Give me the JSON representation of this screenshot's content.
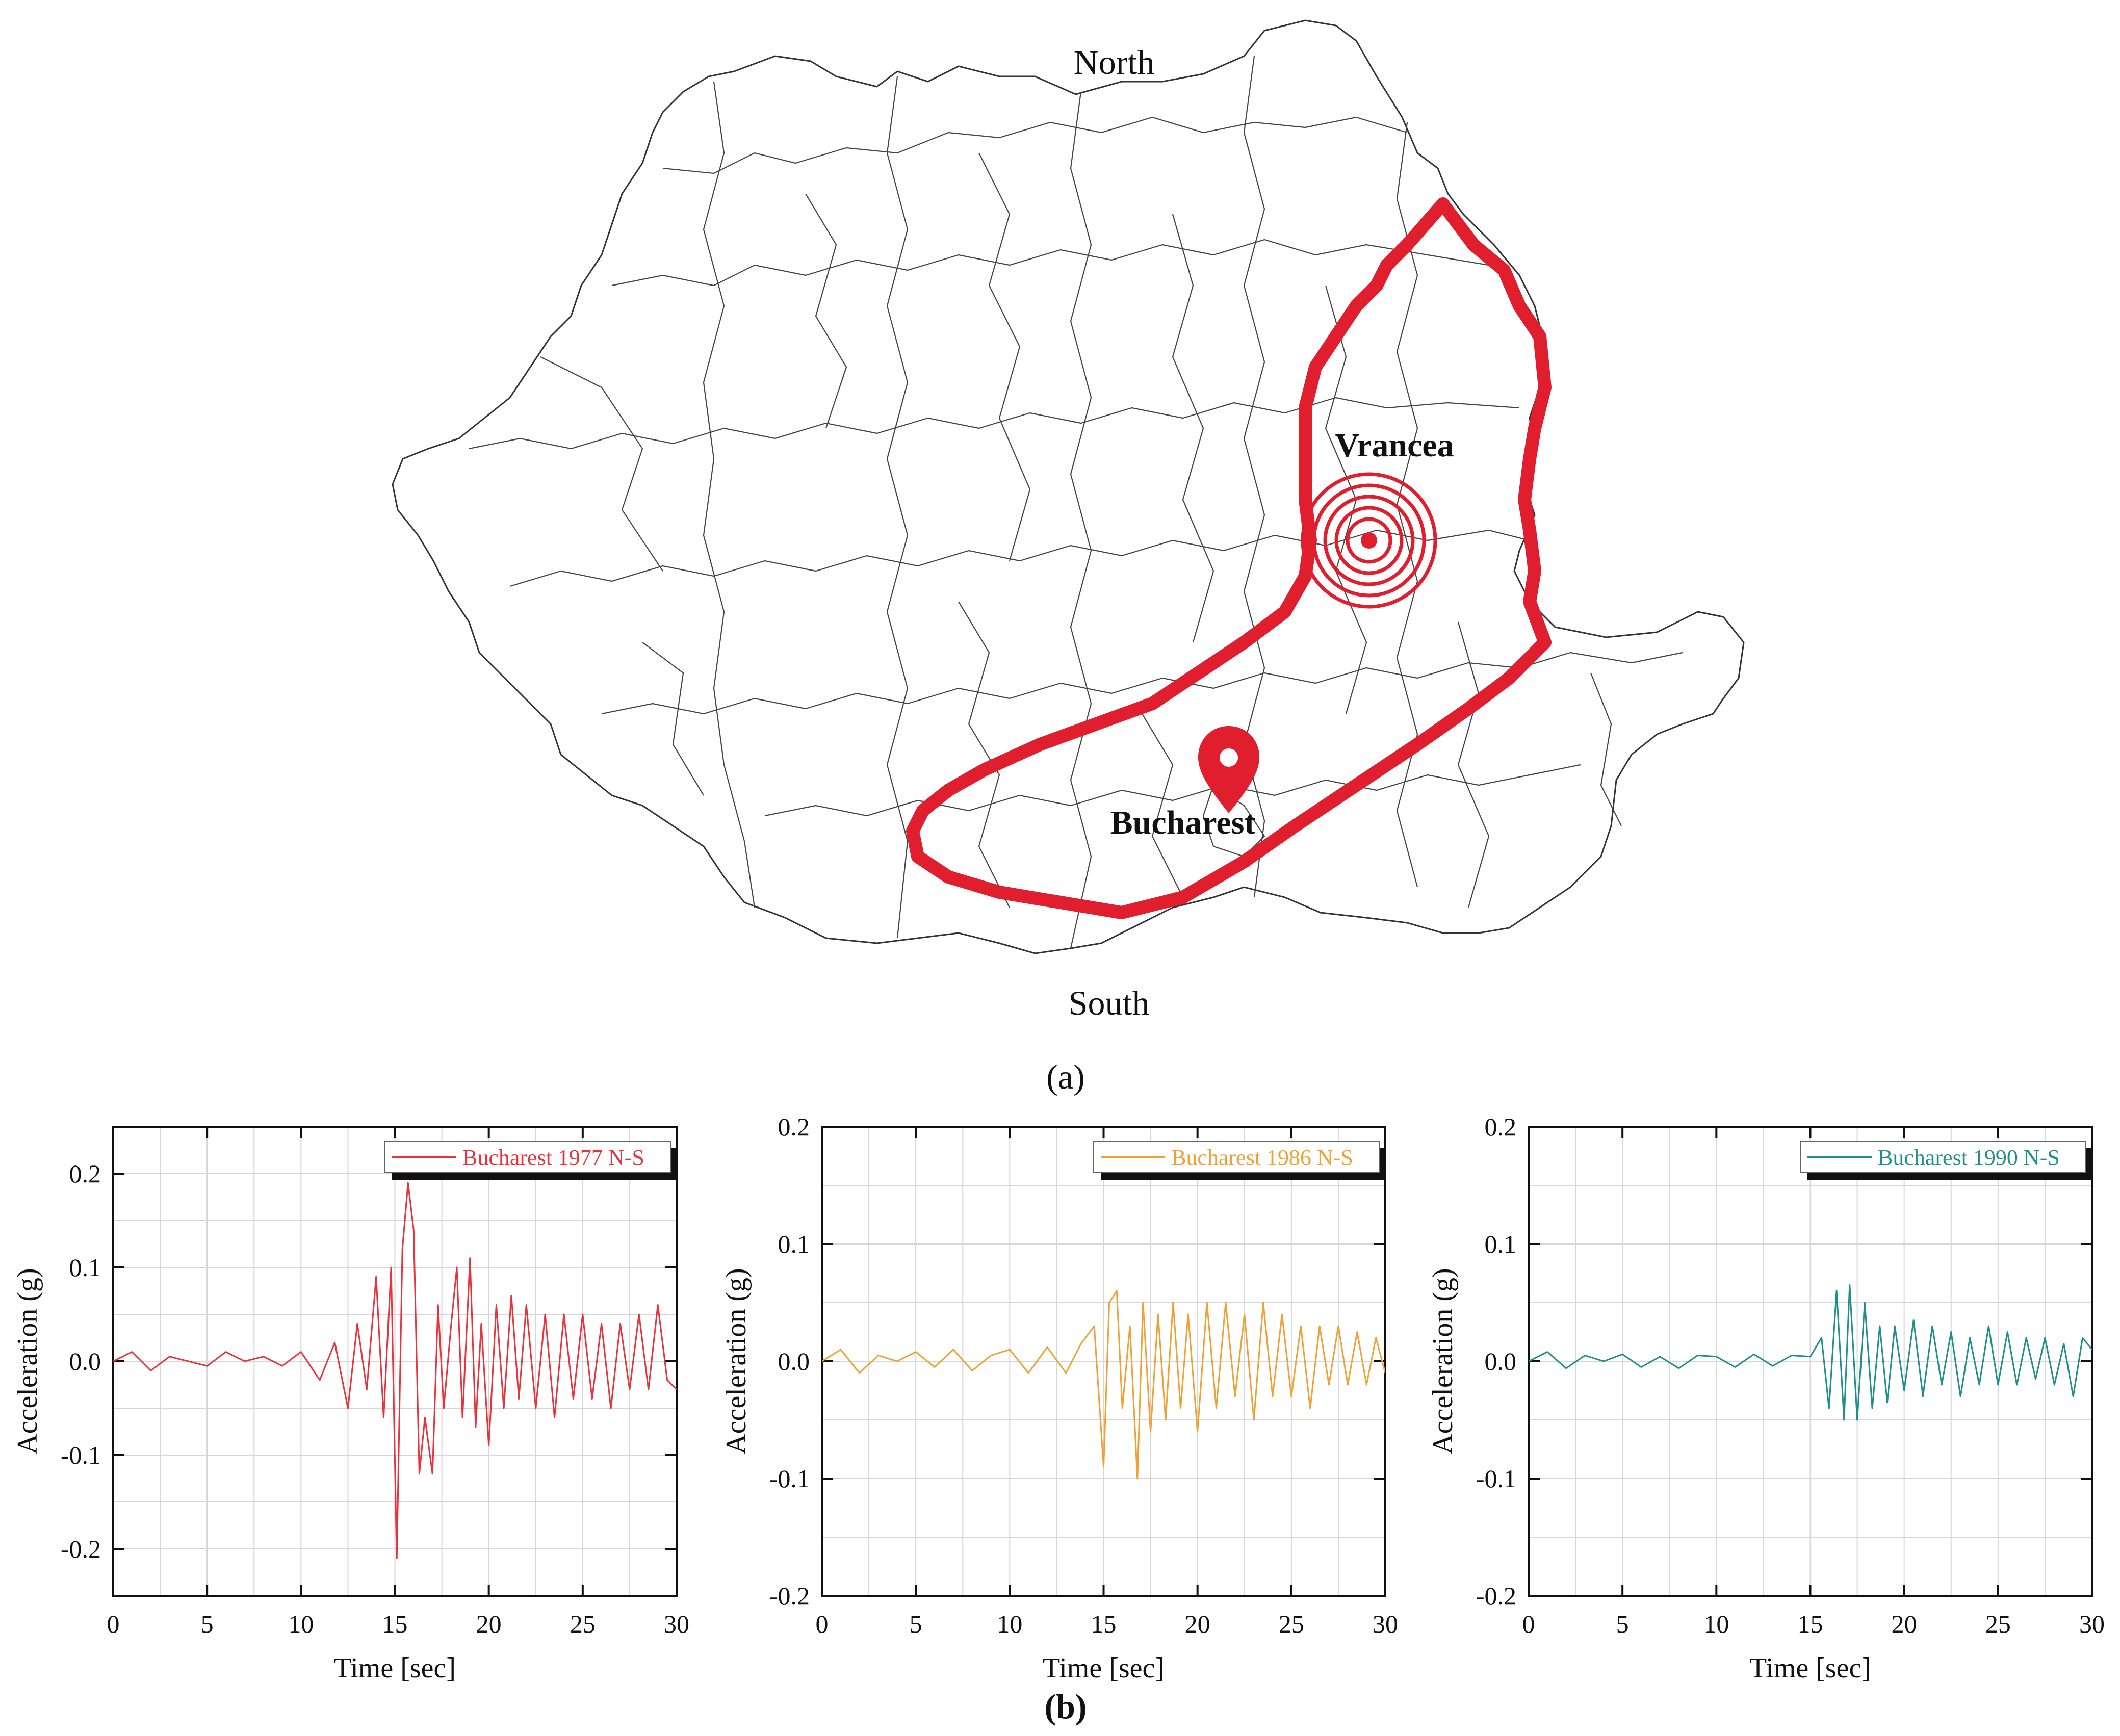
{
  "panel_a": {
    "label": "(a)",
    "compass_north": "North",
    "compass_south": "South",
    "city_vrancea": "Vrancea",
    "city_bucharest": "Bucharest",
    "colors": {
      "outline": "#e01e2e",
      "borders": "#333333"
    },
    "icons": [
      "target-rings-icon",
      "map-pin-icon"
    ]
  },
  "panel_b": {
    "label": "(b)"
  },
  "chart_data": [
    {
      "type": "line",
      "xlabel": "Time [sec]",
      "ylabel": "Acceleration (g)",
      "xlim": [
        0,
        30
      ],
      "ylim": [
        -0.25,
        0.25
      ],
      "xticks": [
        0,
        5,
        10,
        15,
        20,
        25,
        30
      ],
      "yticks": [
        -0.2,
        -0.1,
        0.0,
        0.1,
        0.2
      ],
      "ytick_labels": [
        "-0.2",
        "-0.1",
        "0.0",
        "0.1",
        "0.2"
      ],
      "grid": true,
      "legend": "top-right",
      "series": [
        {
          "name": "Bucharest 1977 N-S",
          "color": "#e8333c",
          "x": [
            0,
            1,
            2,
            3,
            4,
            5,
            6,
            7,
            8,
            9,
            10,
            11,
            11.8,
            12.5,
            13,
            13.5,
            14,
            14.4,
            14.8,
            15.1,
            15.4,
            15.7,
            16,
            16.3,
            16.6,
            17,
            17.3,
            17.6,
            18,
            18.3,
            18.6,
            19,
            19.3,
            19.6,
            20,
            20.4,
            20.8,
            21.2,
            21.6,
            22,
            22.5,
            23,
            23.5,
            24,
            24.5,
            25,
            25.5,
            26,
            26.5,
            27,
            27.5,
            28,
            28.5,
            29,
            29.5,
            30
          ],
          "y": [
            0,
            0.01,
            -0.01,
            0.005,
            0,
            -0.005,
            0.01,
            0,
            0.005,
            -0.005,
            0.01,
            -0.02,
            0.02,
            -0.05,
            0.04,
            -0.03,
            0.09,
            -0.06,
            0.1,
            -0.21,
            0.12,
            0.19,
            0.14,
            -0.12,
            -0.06,
            -0.12,
            0.06,
            -0.05,
            0.04,
            0.1,
            -0.06,
            0.11,
            -0.07,
            0.04,
            -0.09,
            0.06,
            -0.05,
            0.07,
            -0.04,
            0.06,
            -0.05,
            0.05,
            -0.06,
            0.05,
            -0.04,
            0.05,
            -0.04,
            0.04,
            -0.05,
            0.04,
            -0.03,
            0.05,
            -0.03,
            0.06,
            -0.02,
            -0.03
          ]
        }
      ]
    },
    {
      "type": "line",
      "xlabel": "Time [sec]",
      "ylabel": "Acceleration (g)",
      "xlim": [
        0,
        30
      ],
      "ylim": [
        -0.2,
        0.2
      ],
      "xticks": [
        0,
        5,
        10,
        15,
        20,
        25,
        30
      ],
      "yticks": [
        -0.2,
        -0.1,
        0.0,
        0.1,
        0.2
      ],
      "ytick_labels": [
        "-0.2",
        "-0.1",
        "0.0",
        "0.1",
        "0.2"
      ],
      "grid": true,
      "legend": "top-right",
      "series": [
        {
          "name": "Bucharest 1986 N-S",
          "color": "#f0a034",
          "x": [
            0,
            1,
            2,
            3,
            4,
            5,
            6,
            7,
            8,
            9,
            10,
            11,
            12,
            13,
            13.8,
            14.5,
            15,
            15.3,
            15.7,
            16,
            16.4,
            16.8,
            17.1,
            17.5,
            17.9,
            18.3,
            18.7,
            19.1,
            19.5,
            20,
            20.5,
            21,
            21.5,
            22,
            22.5,
            23,
            23.5,
            24,
            24.5,
            25,
            25.5,
            26,
            26.5,
            27,
            27.5,
            28,
            28.5,
            29,
            29.5,
            30
          ],
          "y": [
            0,
            0.01,
            -0.01,
            0.005,
            0,
            0.008,
            -0.005,
            0.01,
            -0.008,
            0.005,
            0.01,
            -0.01,
            0.012,
            -0.01,
            0.015,
            0.03,
            -0.09,
            0.05,
            0.06,
            -0.04,
            0.03,
            -0.1,
            0.05,
            -0.06,
            0.04,
            -0.05,
            0.05,
            -0.04,
            0.04,
            -0.06,
            0.05,
            -0.04,
            0.05,
            -0.03,
            0.04,
            -0.05,
            0.05,
            -0.03,
            0.04,
            -0.03,
            0.03,
            -0.04,
            0.03,
            -0.02,
            0.03,
            -0.02,
            0.025,
            -0.02,
            0.02,
            -0.01
          ]
        }
      ]
    },
    {
      "type": "line",
      "xlabel": "Time [sec]",
      "ylabel": "Acceleration (g)",
      "xlim": [
        0,
        30
      ],
      "ylim": [
        -0.2,
        0.2
      ],
      "xticks": [
        0,
        5,
        10,
        15,
        20,
        25,
        30
      ],
      "yticks": [
        -0.2,
        -0.1,
        0.0,
        0.1,
        0.2
      ],
      "ytick_labels": [
        "-0.2",
        "-0.1",
        "0.0",
        "0.1",
        "0.2"
      ],
      "grid": true,
      "legend": "top-right",
      "series": [
        {
          "name": "Bucharest 1990 N-S",
          "color": "#1e8f8a",
          "x": [
            0,
            1,
            2,
            3,
            4,
            5,
            6,
            7,
            8,
            9,
            10,
            11,
            12,
            13,
            14,
            15,
            15.6,
            16,
            16.4,
            16.8,
            17.1,
            17.5,
            17.9,
            18.3,
            18.7,
            19.1,
            19.5,
            20,
            20.5,
            21,
            21.5,
            22,
            22.5,
            23,
            23.5,
            24,
            24.5,
            25,
            25.5,
            26,
            26.5,
            27,
            27.5,
            28,
            28.5,
            29,
            29.5,
            30
          ],
          "y": [
            0,
            0.008,
            -0.006,
            0.005,
            0,
            0.006,
            -0.005,
            0.004,
            -0.006,
            0.005,
            0.004,
            -0.005,
            0.006,
            -0.004,
            0.005,
            0.004,
            0.02,
            -0.04,
            0.06,
            -0.05,
            0.065,
            -0.05,
            0.05,
            -0.04,
            0.03,
            -0.035,
            0.03,
            -0.025,
            0.035,
            -0.03,
            0.03,
            -0.02,
            0.025,
            -0.03,
            0.02,
            -0.02,
            0.03,
            -0.02,
            0.025,
            -0.02,
            0.02,
            -0.015,
            0.02,
            -0.02,
            0.015,
            -0.03,
            0.02,
            0.01
          ]
        }
      ]
    }
  ]
}
